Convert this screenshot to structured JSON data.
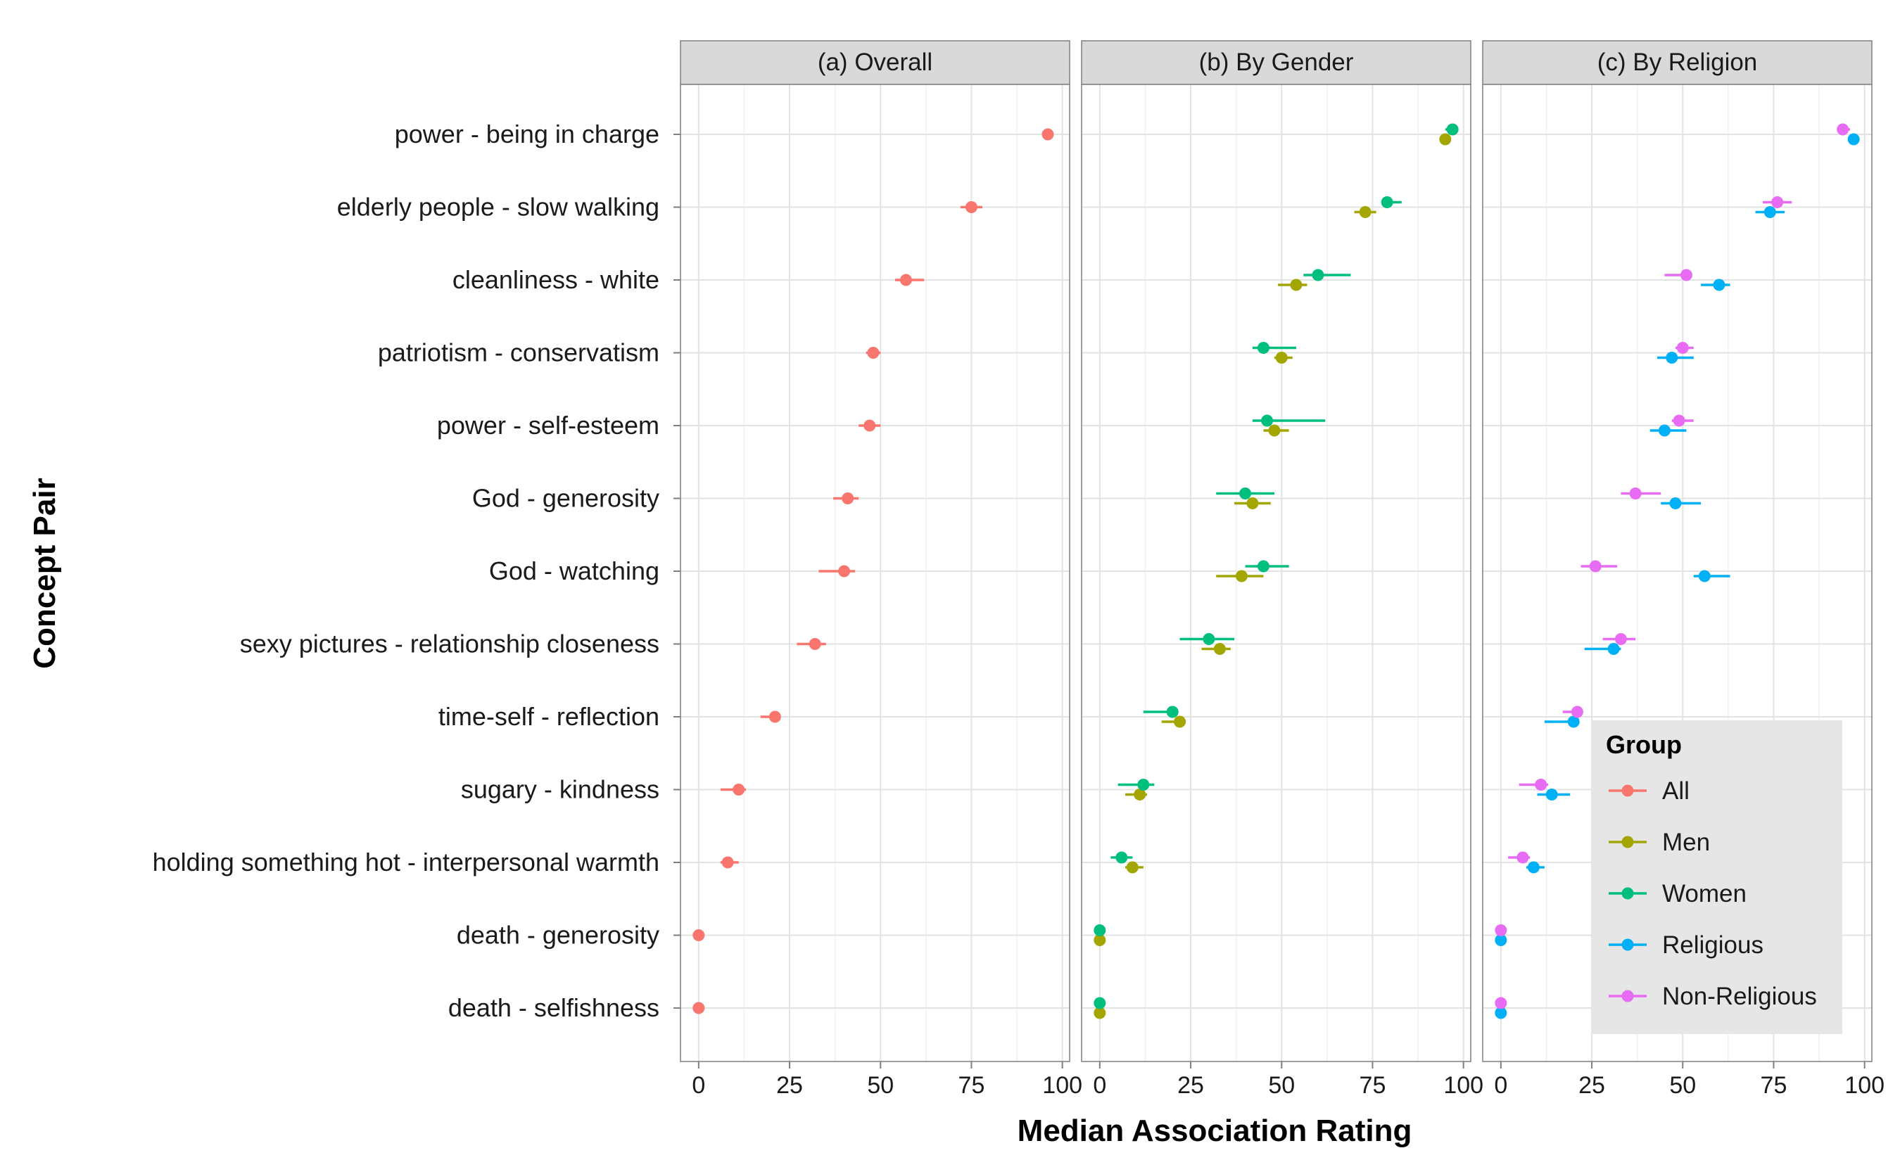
{
  "chart_data": {
    "type": "scatter",
    "subtype": "faceted dot plot with error bars",
    "xlabel": "Median Association Rating",
    "ylabel": "Concept Pair",
    "xlim": [
      -5,
      102
    ],
    "x_ticks": [
      0,
      25,
      50,
      75,
      100
    ],
    "x_tick_labels": [
      "0",
      "25",
      "50",
      "75",
      "100"
    ],
    "grid": true,
    "legend": {
      "title": "Group",
      "placement": "bottom-right, inside panel (c)",
      "entries": [
        "All",
        "Men",
        "Women",
        "Religious",
        "Non-Religious"
      ]
    },
    "colors": {
      "All": "#F8766D",
      "Men": "#A3A500",
      "Women": "#00BF7D",
      "Religious": "#00B0F6",
      "Non-Religious": "#E76BF3"
    },
    "categories": [
      "power - being in charge",
      "elderly people - slow walking",
      "cleanliness - white",
      "patriotism - conservatism",
      "power - self-esteem",
      "God - generosity",
      "God - watching",
      "sexy pictures - relationship closeness",
      "time-self - reflection",
      "sugary - kindness",
      "holding something hot - interpersonal warmth",
      "death - generosity",
      "death - selfishness"
    ],
    "panels": [
      {
        "title": "(a) Overall",
        "series": [
          {
            "name": "All",
            "values": [
              96,
              75,
              57,
              48,
              47,
              41,
              40,
              32,
              21,
              11,
              8,
              0,
              0
            ],
            "lower": [
              96,
              72,
              54,
              46,
              44,
              37,
              33,
              27,
              17,
              6,
              6,
              0,
              0
            ],
            "upper": [
              96,
              78,
              62,
              50,
              50,
              44,
              43,
              35,
              22,
              13,
              11,
              0,
              0
            ]
          }
        ]
      },
      {
        "title": "(b) By Gender",
        "series": [
          {
            "name": "Men",
            "values": [
              95,
              73,
              54,
              50,
              48,
              42,
              39,
              33,
              22,
              11,
              9,
              0,
              0
            ],
            "lower": [
              94,
              70,
              49,
              48,
              45,
              37,
              32,
              28,
              17,
              7,
              7,
              0,
              0
            ],
            "upper": [
              95,
              76,
              57,
              53,
              52,
              47,
              45,
              36,
              23,
              13,
              12,
              0,
              0
            ]
          },
          {
            "name": "Women",
            "values": [
              97,
              79,
              60,
              45,
              46,
              40,
              45,
              30,
              20,
              12,
              6,
              0,
              0
            ],
            "lower": [
              95,
              78,
              56,
              42,
              42,
              32,
              40,
              22,
              12,
              5,
              3,
              0,
              0
            ],
            "upper": [
              98,
              83,
              69,
              54,
              62,
              48,
              52,
              37,
              21,
              15,
              9,
              0,
              0
            ]
          }
        ]
      },
      {
        "title": "(c) By Religion",
        "series": [
          {
            "name": "Religious",
            "values": [
              97,
              74,
              60,
              47,
              45,
              48,
              56,
              31,
              20,
              14,
              9,
              0,
              0
            ],
            "lower": [
              96,
              70,
              55,
              43,
              41,
              44,
              53,
              23,
              12,
              10,
              7,
              0,
              0
            ],
            "upper": [
              97,
              78,
              63,
              53,
              51,
              55,
              63,
              33,
              20,
              19,
              12,
              0,
              0
            ]
          },
          {
            "name": "Non-Religious",
            "values": [
              94,
              76,
              51,
              50,
              49,
              37,
              26,
              33,
              21,
              11,
              6,
              0,
              0
            ],
            "lower": [
              93,
              72,
              45,
              48,
              47,
              33,
              22,
              28,
              17,
              5,
              2,
              0,
              0
            ],
            "upper": [
              96,
              80,
              52,
              53,
              53,
              44,
              32,
              37,
              22,
              13,
              8,
              0,
              0
            ]
          }
        ]
      }
    ]
  }
}
